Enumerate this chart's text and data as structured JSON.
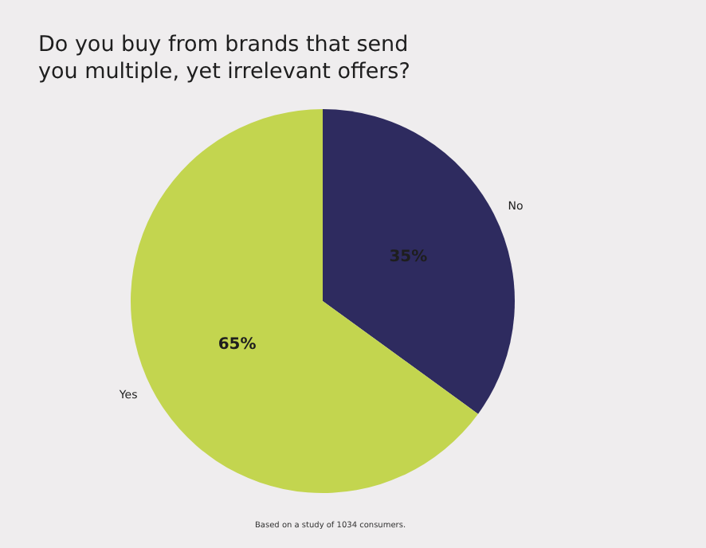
{
  "chart_data": {
    "type": "pie",
    "title": "Do you buy from brands that send you multiple, yet irrelevant offers?",
    "categories": [
      "No",
      "Yes"
    ],
    "values": [
      35,
      65
    ],
    "colors": [
      "#2e2b5f",
      "#c3d54f"
    ],
    "value_labels": [
      "35%",
      "65%"
    ],
    "annotations": [
      "Based on a study of 1034 consumers."
    ]
  }
}
